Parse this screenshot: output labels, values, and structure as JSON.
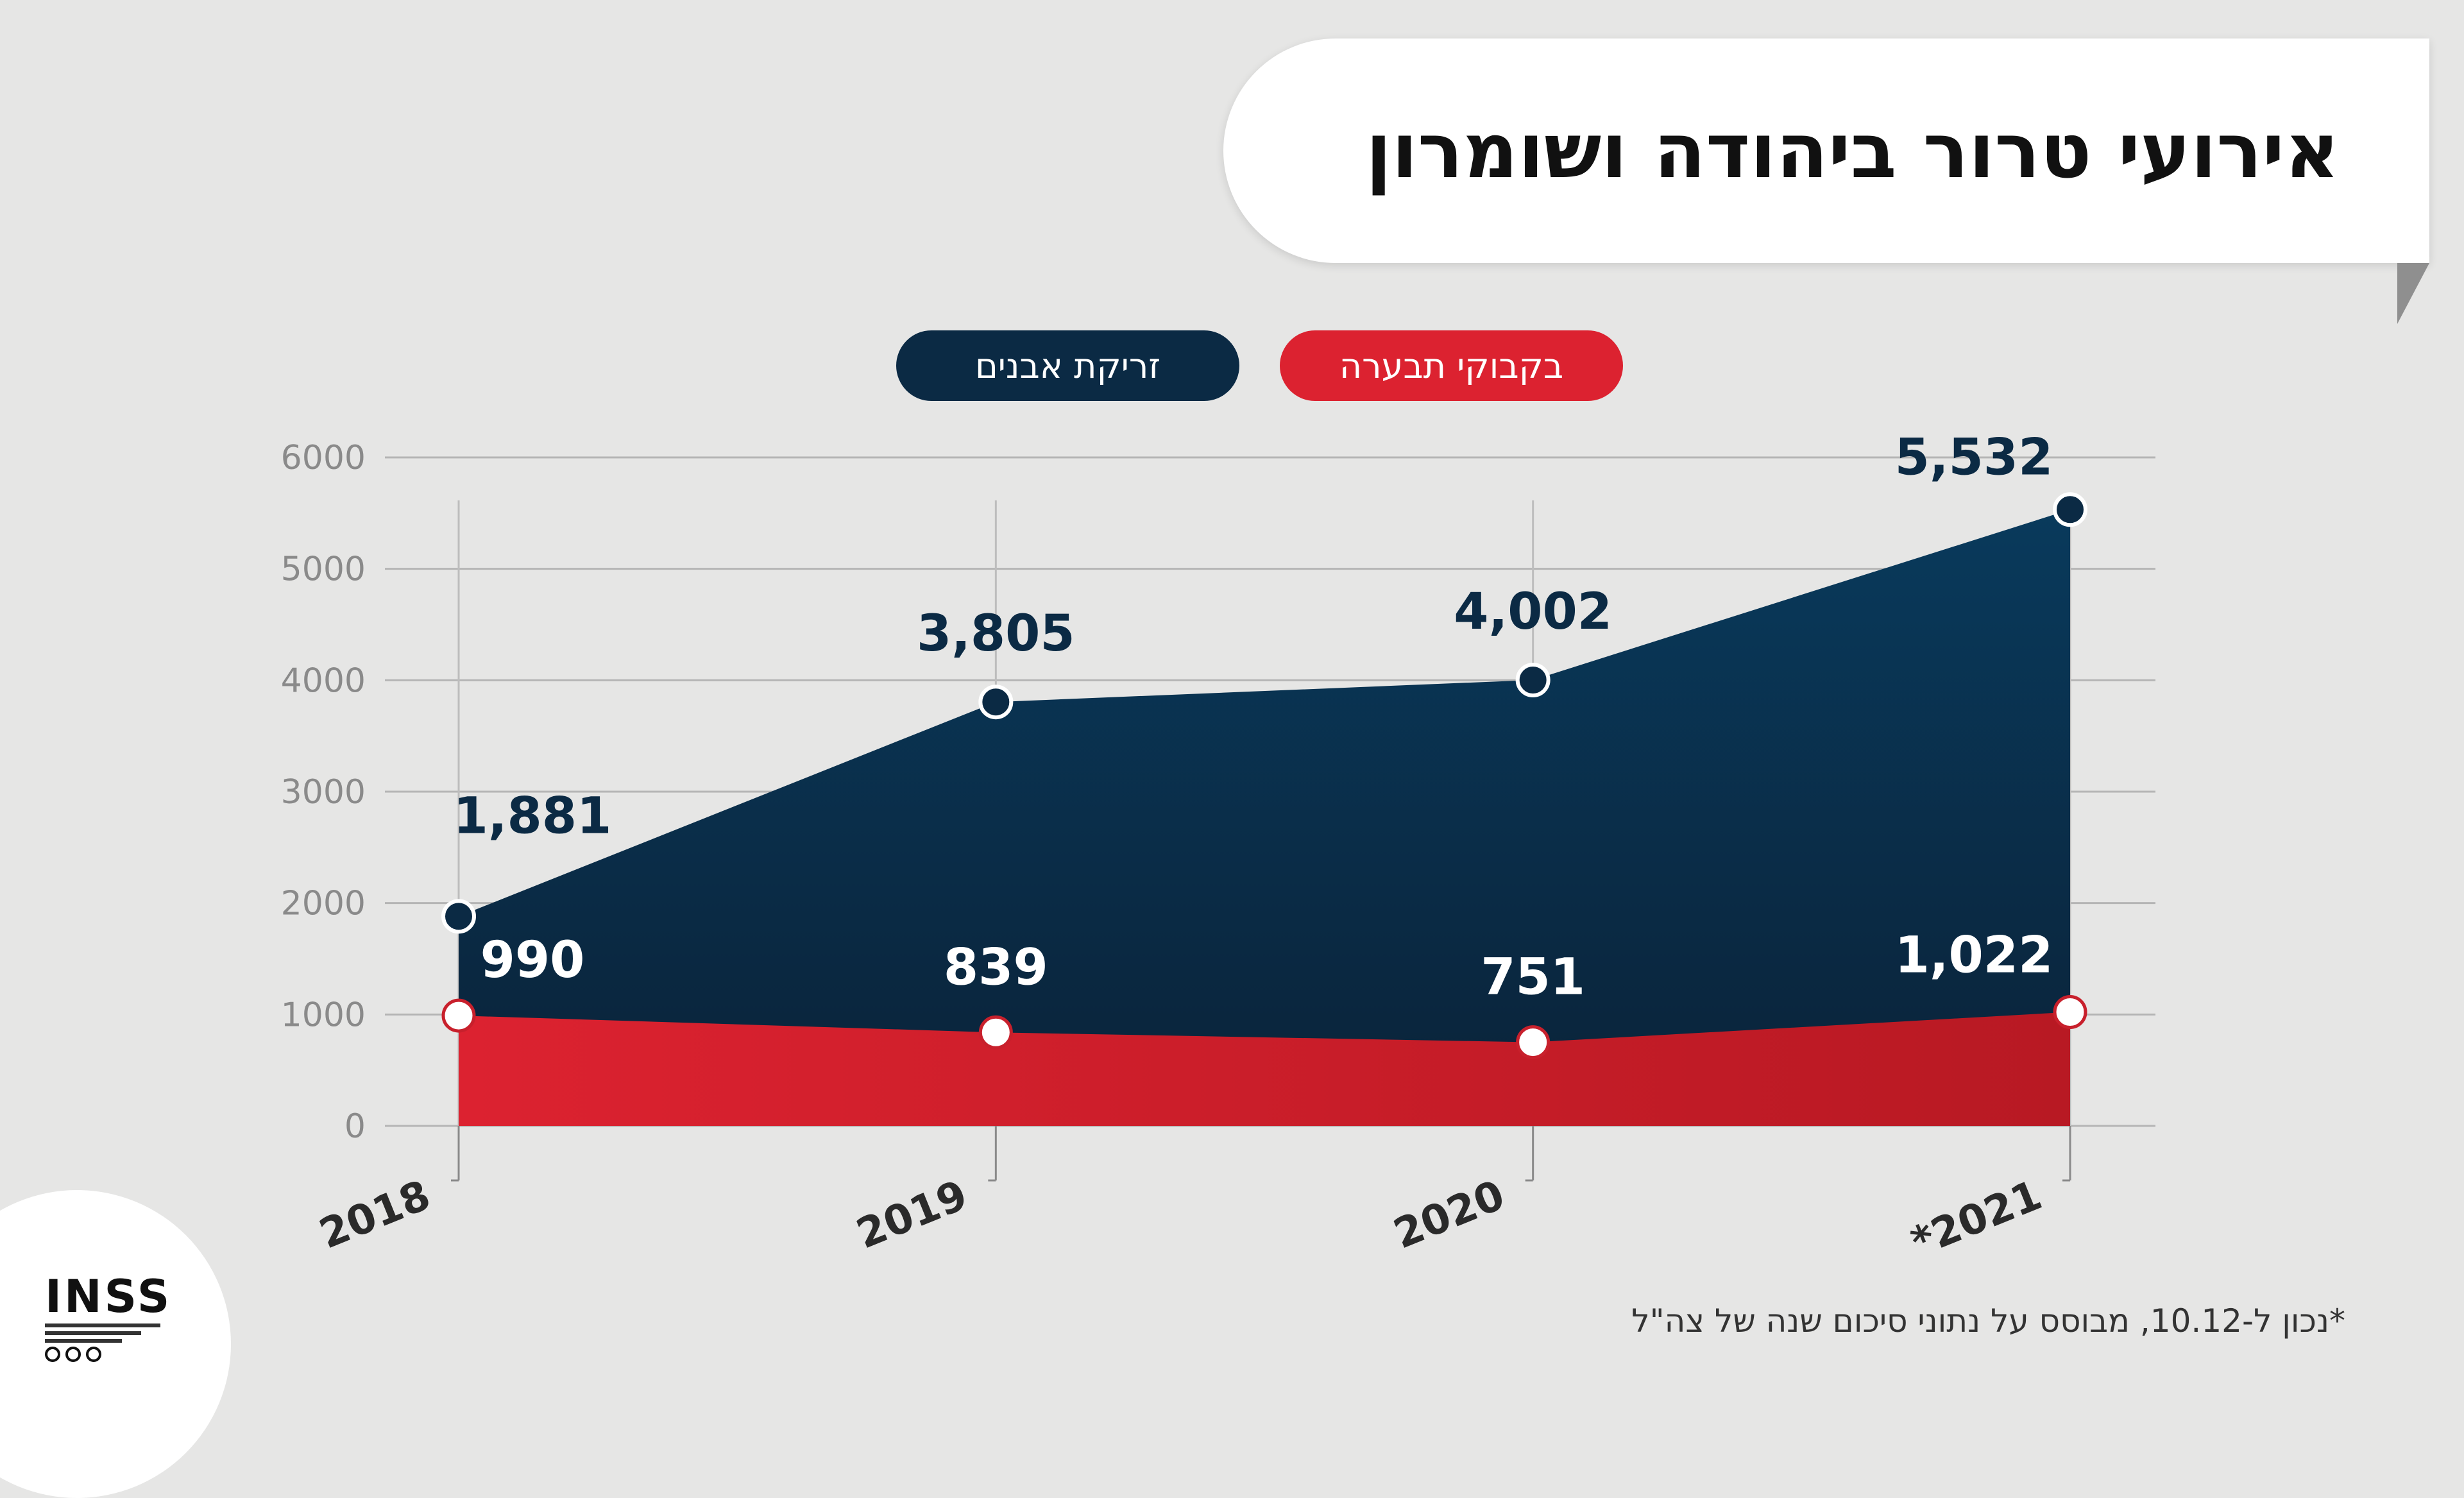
{
  "title": "אירועי טרור ביהודה ושומרון",
  "legend": {
    "stones": "זריקת אבנים",
    "molotov": "בקבוקי תבערה"
  },
  "colors": {
    "stones_fill_top": "#093a5c",
    "stones_fill_bottom": "#0a2238",
    "molotov_fill": "#dc2230",
    "molotov_fill_dark": "#b81923",
    "stones_marker": "#0b2a44",
    "molotov_marker_border": "#c8202c",
    "background": "#e6e6e5"
  },
  "footnote": "*נכון ל-10.12, מבוסס על נתוני סיכום שנה של צה\"ל",
  "logo": {
    "icon": "inss-logo"
  },
  "chart_data": {
    "type": "area",
    "title": "אירועי טרור ביהודה ושומרון",
    "categories": [
      "2018",
      "2019",
      "2020",
      "*2021"
    ],
    "series": [
      {
        "name": "זריקת אבנים",
        "values": [
          1881,
          3805,
          4002,
          5532
        ],
        "labels": [
          "1,881",
          "3,805",
          "4,002",
          "5,532"
        ]
      },
      {
        "name": "בקבוקי תבערה",
        "values": [
          990,
          839,
          751,
          1022
        ],
        "labels": [
          "990",
          "839",
          "751",
          "1,022"
        ]
      }
    ],
    "ylim": [
      0,
      6000
    ],
    "yticks": [
      "0",
      "1000",
      "2000",
      "3000",
      "4000",
      "5000",
      "6000"
    ],
    "xlabel": "",
    "ylabel": "",
    "grid": true,
    "legend_position": "top"
  }
}
